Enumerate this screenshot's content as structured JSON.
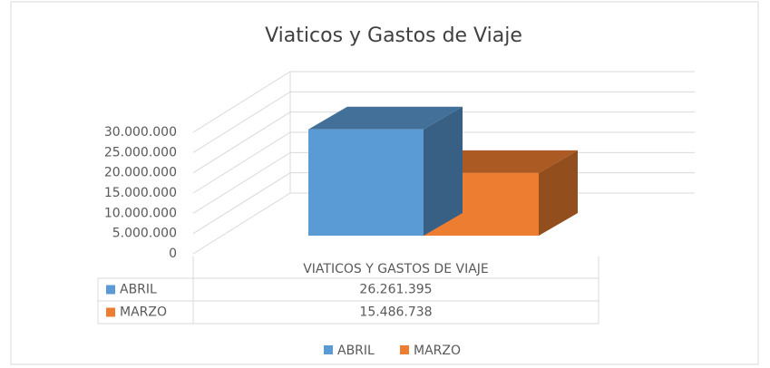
{
  "chart_data": {
    "type": "bar3d",
    "title": "Viaticos y Gastos de Viaje",
    "categories": [
      "VIATICOS Y GASTOS DE VIAJE"
    ],
    "series": [
      {
        "name": "ABRIL",
        "color": "#5b9bd5",
        "values": [
          26261395
        ],
        "value_labels": [
          "26.261.395"
        ]
      },
      {
        "name": "MARZO",
        "color": "#ed7d31",
        "values": [
          15486738
        ],
        "value_labels": [
          "15.486.738"
        ]
      }
    ],
    "ylim": [
      0,
      30000000
    ],
    "yticks": [
      0,
      {
        "value": 5000000,
        "label": "5.000.000"
      },
      {
        "value": 10000000,
        "label": "10.000.000"
      },
      {
        "value": 15000000,
        "label": "15.000.000"
      },
      {
        "value": 20000000,
        "label": "20.000.000"
      },
      {
        "value": 25000000,
        "label": "25.000.000"
      },
      {
        "value": 30000000,
        "label": "30.000.000"
      }
    ],
    "grid": true,
    "legend": "bottom",
    "data_table": true
  }
}
